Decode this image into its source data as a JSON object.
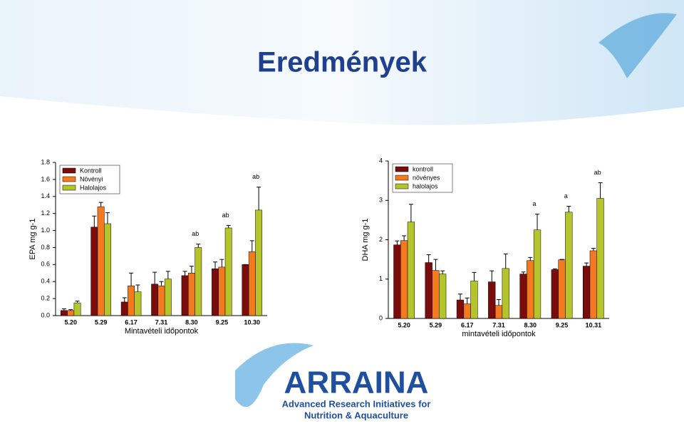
{
  "slide": {
    "title": "Eredmények",
    "logo": {
      "name": "ARRAINA",
      "line1": "Advanced Research Initiatives for",
      "line2": "Nutrition & Aquaculture"
    }
  },
  "chart_data": [
    {
      "type": "bar",
      "legend": "upper left",
      "categories": [
        "5.20",
        "5.29",
        "6.17",
        "7.31",
        "8.30",
        "9.25",
        "10.30"
      ],
      "xlabel": "Mintavételi időpontok",
      "ylabel": "EPA mg g-1",
      "ylim": [
        0,
        1.8
      ],
      "yticks": [
        {
          "value": 0,
          "label": "0.0"
        },
        0.2,
        0.4,
        0.6,
        0.8,
        {
          "value": 1,
          "label": "1.0"
        },
        1.2,
        1.4,
        1.6,
        1.8
      ],
      "series": [
        {
          "name": "Kontroll",
          "color": "#7a0c0c",
          "values": [
            0.06,
            1.04,
            0.16,
            0.37,
            0.47,
            0.55,
            0.6
          ],
          "errors": [
            0.02,
            0.13,
            0.05,
            0.14,
            0.05,
            0.08,
            0.0
          ]
        },
        {
          "name": "Növényi",
          "color": "#f47a20",
          "values": [
            0.06,
            1.28,
            0.35,
            0.35,
            0.5,
            0.57,
            0.75
          ],
          "errors": [
            0.01,
            0.05,
            0.15,
            0.05,
            0.08,
            0.09,
            0.13
          ]
        },
        {
          "name": "Halolajos",
          "color": "#b4c42a",
          "values": [
            0.15,
            1.08,
            0.28,
            0.43,
            0.8,
            1.03,
            1.24
          ],
          "errors": [
            0.02,
            0.13,
            0.08,
            0.09,
            0.04,
            0.03,
            0.27
          ],
          "letters": [
            null,
            null,
            null,
            null,
            "ab",
            "ab",
            "ab"
          ]
        }
      ]
    },
    {
      "type": "bar",
      "legend": "upper left",
      "categories": [
        "5.20",
        "5.29",
        "6.17",
        "7.31",
        "8.30",
        "9.25",
        "10.31"
      ],
      "xlabel": "mintavételi időpontok",
      "ylabel": "DHA mg g-1",
      "ylim": [
        0,
        4
      ],
      "yticks": [
        0,
        1,
        2,
        3,
        4
      ],
      "series": [
        {
          "name": "kontroll",
          "color": "#7a0c0c",
          "values": [
            1.87,
            1.42,
            0.47,
            0.93,
            1.13,
            1.24,
            1.33
          ],
          "errors": [
            0.1,
            0.2,
            0.15,
            0.28,
            0.05,
            0.02,
            0.08
          ]
        },
        {
          "name": "növényes",
          "color": "#f47a20",
          "values": [
            1.98,
            1.22,
            0.37,
            0.33,
            1.47,
            1.49,
            1.72
          ],
          "errors": [
            0.12,
            0.28,
            0.15,
            0.15,
            0.08,
            0.01,
            0.06
          ]
        },
        {
          "name": "halolajos",
          "color": "#b4c42a",
          "values": [
            2.45,
            1.13,
            0.95,
            1.27,
            2.25,
            2.7,
            3.05
          ],
          "errors": [
            0.45,
            0.08,
            0.22,
            0.37,
            0.4,
            0.15,
            0.4
          ],
          "letters": [
            null,
            null,
            null,
            null,
            "a",
            "a",
            "ab"
          ]
        }
      ]
    }
  ]
}
